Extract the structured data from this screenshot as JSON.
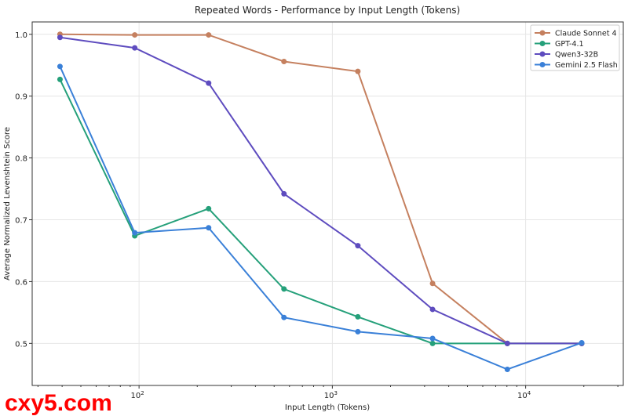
{
  "chart_data": {
    "type": "line",
    "title": "Repeated Words - Performance by Input Length (Tokens)",
    "xlabel": "Input Length (Tokens)",
    "ylabel": "Average Normalized Levenshtein Score",
    "xscale": "log",
    "xlim": [
      28,
      32000
    ],
    "ylim": [
      0.432,
      1.02
    ],
    "x_ticks": [
      {
        "value": 100,
        "base": "10",
        "exp": "2"
      },
      {
        "value": 1000,
        "base": "10",
        "exp": "3"
      },
      {
        "value": 10000,
        "base": "10",
        "exp": "4"
      }
    ],
    "y_ticks": [
      "0.5",
      "0.6",
      "0.7",
      "0.8",
      "0.9",
      "1.0"
    ],
    "grid": true,
    "legend_position": "top-right",
    "x": [
      39,
      95,
      229,
      562,
      1355,
      3300,
      8040,
      19500
    ],
    "series": [
      {
        "name": "Claude Sonnet 4",
        "color": "#c5805f",
        "values": [
          1.0,
          0.999,
          0.999,
          0.956,
          0.94,
          0.597,
          0.5,
          0.5
        ]
      },
      {
        "name": "GPT-4.1",
        "color": "#25a07a",
        "values": [
          0.927,
          0.674,
          0.718,
          0.588,
          0.543,
          0.5,
          0.5,
          0.5
        ]
      },
      {
        "name": "Qwen3-32B",
        "color": "#5e4cbf",
        "values": [
          0.995,
          0.978,
          0.921,
          0.742,
          0.658,
          0.555,
          0.5,
          0.5
        ]
      },
      {
        "name": "Gemini 2.5 Flash",
        "color": "#3a80d8",
        "values": [
          0.948,
          0.679,
          0.687,
          0.542,
          0.519,
          0.508,
          0.458,
          0.501
        ]
      }
    ]
  },
  "watermark": "cxy5.com"
}
